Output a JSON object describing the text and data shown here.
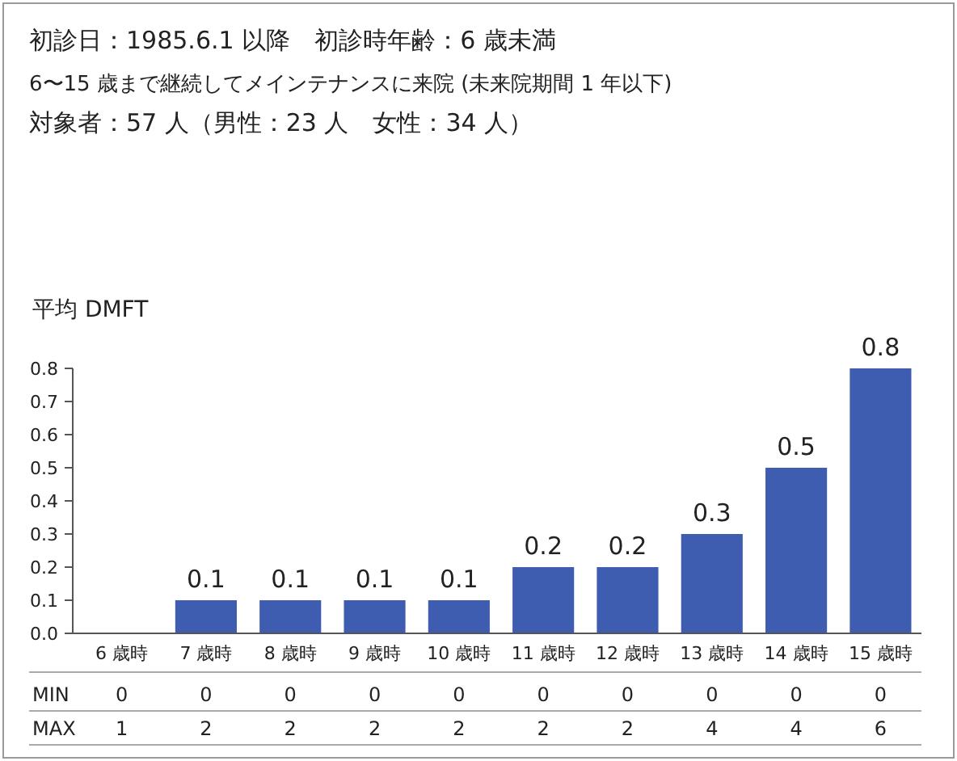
{
  "chart_data": {
    "type": "bar",
    "title": "初診日：1985.6.1 以降　初診時年齢：6 歳未満",
    "subtitle": "6〜15 歳まで継続してメインテナンスに来院 (未来院期間 1 年以下)\n対象者：57 人（男性：23 人　女性：34 人）",
    "ylabel": "平均 DMFT",
    "categories": [
      "6 歳時",
      "7 歳時",
      "8 歳時",
      "9 歳時",
      "10 歳時",
      "11 歳時",
      "12 歳時",
      "13 歳時",
      "14 歳時",
      "15 歳時"
    ],
    "values": [
      0,
      0.1,
      0.1,
      0.1,
      0.1,
      0.2,
      0.2,
      0.3,
      0.5,
      0.8
    ],
    "value_labels": [
      null,
      "0.1",
      "0.1",
      "0.1",
      "0.1",
      "0.2",
      "0.2",
      "0.3",
      "0.5",
      "0.8"
    ],
    "color": "#3f5db0",
    "ylim": [
      0,
      0.8
    ],
    "yticks": [
      {
        "value": 0,
        "label": "0.0"
      },
      {
        "value": 0.1,
        "label": "0.1"
      },
      {
        "value": 0.2,
        "label": "0.2"
      },
      {
        "value": 0.3,
        "label": "0.3"
      },
      {
        "value": 0.4,
        "label": "0.4"
      },
      {
        "value": 0.5,
        "label": "0.5"
      },
      {
        "value": 0.6,
        "label": "0.6"
      },
      {
        "value": 0.7,
        "label": "0.7"
      },
      {
        "value": 0.8,
        "label": "0.8"
      }
    ],
    "annotations": [
      "MIN 0 0 0 0 0 0 0 0 0 0",
      "MAX 1 2 2 2 2 2 2 4 4 6"
    ]
  }
}
